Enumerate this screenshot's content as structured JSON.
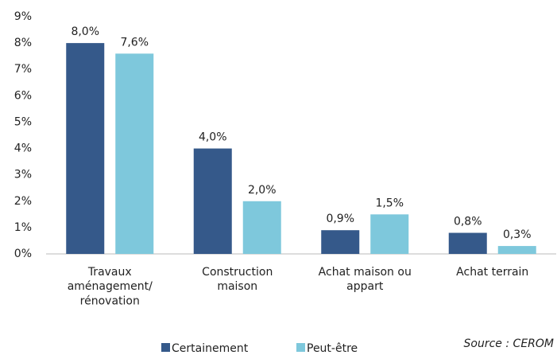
{
  "chart_data": {
    "type": "bar",
    "categories": [
      "Travaux\naménagement/\nrénovation",
      "Construction\nmaison",
      "Achat maison ou\nappart",
      "Achat terrain"
    ],
    "series": [
      {
        "name": "Certainement",
        "color": "#35598a",
        "values": [
          8.0,
          4.0,
          0.9,
          0.8
        ],
        "value_labels": [
          "8,0%",
          "4,0%",
          "0,9%",
          "0,8%"
        ]
      },
      {
        "name": "Peut-être",
        "color": "#7ec8dc",
        "values": [
          7.6,
          2.0,
          1.5,
          0.3
        ],
        "value_labels": [
          "7,6%",
          "2,0%",
          "1,5%",
          "0,3%"
        ]
      }
    ],
    "ylim": [
      0,
      9
    ],
    "yticks": [
      {
        "value": 0,
        "label": "0%"
      },
      {
        "value": 1,
        "label": "1%"
      },
      {
        "value": 2,
        "label": "2%"
      },
      {
        "value": 3,
        "label": "3%"
      },
      {
        "value": 4,
        "label": "4%"
      },
      {
        "value": 5,
        "label": "5%"
      },
      {
        "value": 6,
        "label": "6%"
      },
      {
        "value": 7,
        "label": "7%"
      },
      {
        "value": 8,
        "label": "8%"
      },
      {
        "value": 9,
        "label": "9%"
      }
    ],
    "source": "Source : CEROM",
    "grid": false
  }
}
